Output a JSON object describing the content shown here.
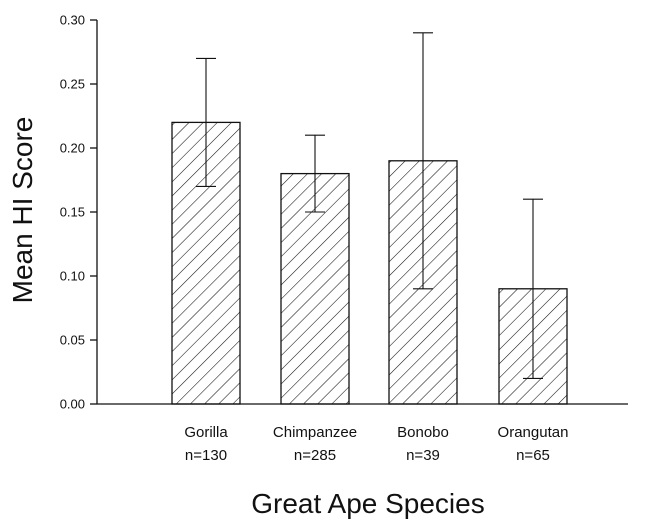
{
  "chart_data": {
    "type": "bar",
    "title": "",
    "xlabel": "Great Ape Species",
    "ylabel": "Mean HI Score",
    "categories": [
      "Gorilla",
      "Chimpanzee",
      "Bonobo",
      "Orangutan"
    ],
    "sample_sizes": [
      "n=130",
      "n=285",
      "n=39",
      "n=65"
    ],
    "values": [
      0.22,
      0.18,
      0.19,
      0.09
    ],
    "error_low": [
      0.17,
      0.15,
      0.09,
      0.02
    ],
    "error_high": [
      0.27,
      0.21,
      0.29,
      0.16
    ],
    "ylim": [
      0,
      0.3
    ],
    "yticks": [
      "0.00",
      "0.05",
      "0.10",
      "0.15",
      "0.20",
      "0.25",
      "0.30"
    ],
    "grid": false,
    "bar_fill": "diagonal-hatch",
    "colors": {
      "ink": "#111111",
      "background": "#ffffff"
    }
  }
}
